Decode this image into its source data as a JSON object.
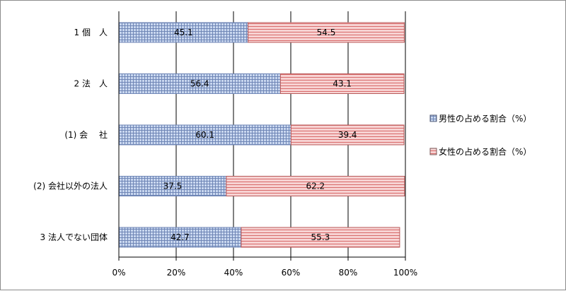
{
  "chart_data": {
    "type": "bar",
    "orientation": "horizontal",
    "stacked": "percent",
    "title": "",
    "xlabel": "",
    "ylabel": "",
    "xlim": [
      0,
      100
    ],
    "x_ticks": [
      "0%",
      "20%",
      "40%",
      "60%",
      "80%",
      "100%"
    ],
    "categories": [
      "1 個　人",
      "2 法　人",
      "(1) 会　 社",
      "(2) 会社以外の法人",
      "3 法人でない団体"
    ],
    "series": [
      {
        "name": "男性の占める割合（%）",
        "values": [
          45.1,
          56.4,
          60.1,
          37.5,
          42.7
        ],
        "color": "#b9cbe9",
        "pattern": "grid"
      },
      {
        "name": "女性の占める割合（%）",
        "values": [
          54.5,
          43.1,
          39.4,
          62.2,
          55.3
        ],
        "color": "#f2b8b8",
        "pattern": "horizontal-lines"
      }
    ],
    "gridlines": true,
    "legend_position": "right"
  }
}
